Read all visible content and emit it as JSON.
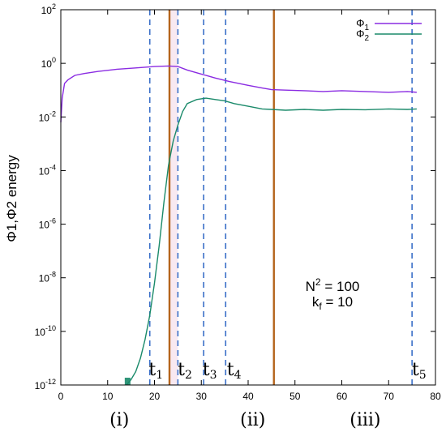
{
  "chart_data": {
    "type": "line",
    "ylabel": "Φ1,Φ2 energy",
    "y_log_scale": true,
    "xlim": [
      0,
      80
    ],
    "ylim_exponents": [
      -12,
      2
    ],
    "x_ticks": [
      "0",
      "10",
      "20",
      "30",
      "40",
      "50",
      "60",
      "70",
      "80"
    ],
    "y_ticks": [
      {
        "base": "10",
        "exp": "2"
      },
      {
        "base": "10",
        "exp": "0"
      },
      {
        "base": "10",
        "exp": "-2"
      },
      {
        "base": "10",
        "exp": "-4"
      },
      {
        "base": "10",
        "exp": "-6"
      },
      {
        "base": "10",
        "exp": "-8"
      },
      {
        "base": "10",
        "exp": "-10"
      },
      {
        "base": "10",
        "exp": "-12"
      }
    ],
    "legend_position": "top-right",
    "series": [
      {
        "name": "Φ",
        "name_sub": "1",
        "color": "#8a2be2",
        "x": [
          0,
          0.3,
          0.8,
          1.5,
          3,
          5,
          8,
          12,
          16,
          20,
          23,
          25,
          27,
          30,
          33,
          36,
          40,
          43,
          45,
          48,
          52,
          56,
          60,
          65,
          70,
          74,
          76
        ],
        "log10": [
          -2.2,
          -1.3,
          -0.75,
          -0.62,
          -0.45,
          -0.38,
          -0.3,
          -0.22,
          -0.17,
          -0.12,
          -0.1,
          -0.12,
          -0.25,
          -0.4,
          -0.55,
          -0.68,
          -0.82,
          -0.92,
          -0.98,
          -1.0,
          -1.02,
          -1.05,
          -1.02,
          -1.05,
          -1.08,
          -1.05,
          -1.08
        ]
      },
      {
        "name": "Φ",
        "name_sub": "2",
        "color": "#1a8a6a",
        "x": [
          14,
          15,
          16,
          17,
          18,
          19,
          20,
          21,
          22,
          23,
          24,
          25,
          26,
          27,
          29,
          31,
          33,
          35,
          37,
          40,
          43,
          45,
          48,
          52,
          56,
          60,
          65,
          70,
          74,
          76
        ],
        "log10": [
          -12,
          -11.8,
          -11.5,
          -11.0,
          -10.3,
          -9.4,
          -8.2,
          -6.8,
          -5.2,
          -3.8,
          -2.9,
          -2.3,
          -1.8,
          -1.5,
          -1.35,
          -1.3,
          -1.35,
          -1.4,
          -1.5,
          -1.6,
          -1.7,
          -1.72,
          -1.75,
          -1.72,
          -1.75,
          -1.72,
          -1.73,
          -1.7,
          -1.72,
          -1.7
        ]
      }
    ],
    "markers": {
      "dashed_times": [
        19,
        25,
        30.5,
        35.2,
        75
      ],
      "solid_times": [
        23.2,
        45.5
      ],
      "time_labels": [
        {
          "t": "t",
          "sub": "1",
          "x": 20.3
        },
        {
          "t": "t",
          "sub": "2",
          "x": 26.5
        },
        {
          "t": "t",
          "sub": "3",
          "x": 31.8
        },
        {
          "t": "t",
          "sub": "4",
          "x": 37.0
        },
        {
          "t": "t",
          "sub": "5",
          "x": 76.5
        }
      ]
    },
    "phase_labels": [
      {
        "text": "(i)",
        "x": 12.5
      },
      {
        "text": "(ii)",
        "x": 41
      },
      {
        "text": "(iii)",
        "x": 65
      }
    ],
    "annotation": {
      "line1_base": "N",
      "line1_sup": "2",
      "line1_rest": " = 100",
      "line2_base": "k",
      "line2_sub": "f",
      "line2_rest": " = 10"
    },
    "colors": {
      "dashed": "#3a6fc8",
      "solid": "#b5651d",
      "shade": "#f2d3e3"
    }
  }
}
